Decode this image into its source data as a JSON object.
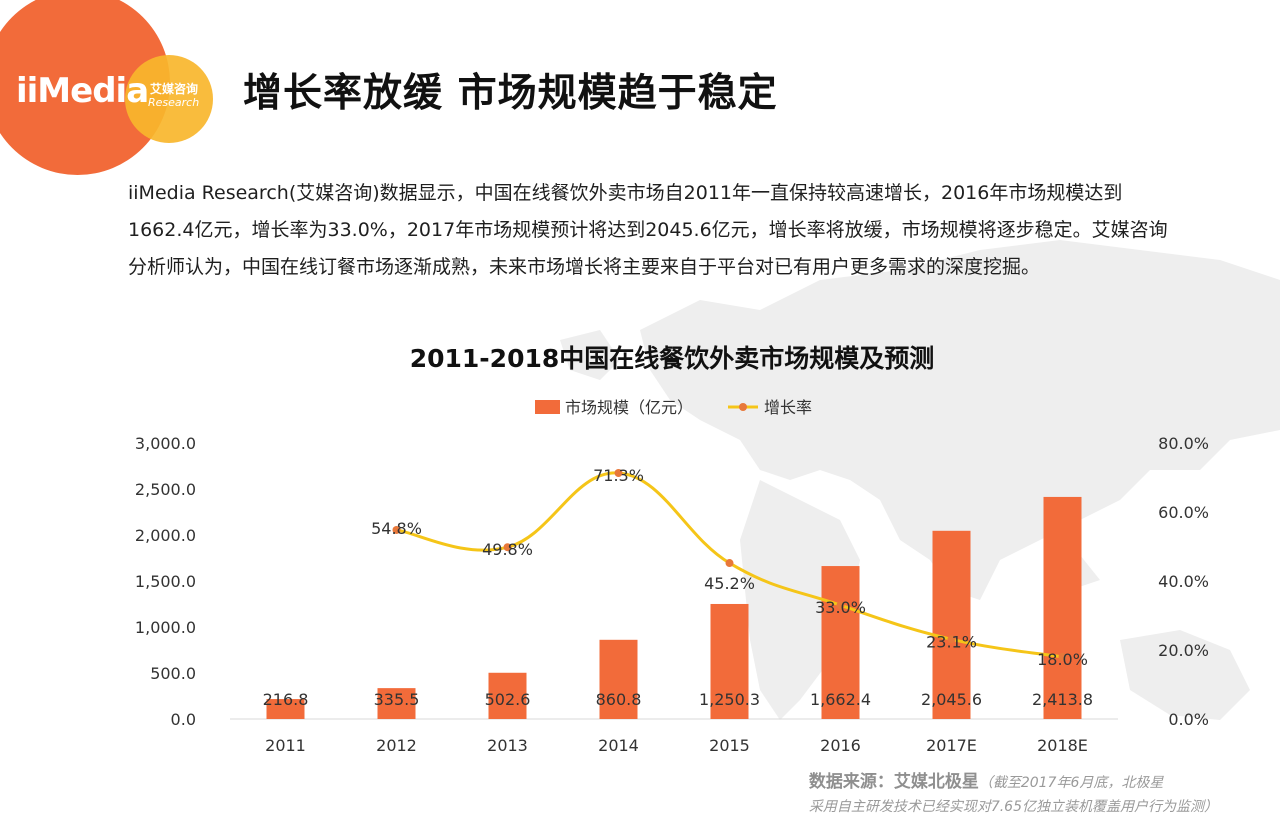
{
  "logo": {
    "brand": "iiMedia",
    "sub_cn": "艾媒咨询",
    "sub_en": "Research"
  },
  "page_title": "增长率放缓 市场规模趋于稳定",
  "description": "iiMedia Research(艾媒咨询)数据显示，中国在线餐饮外卖市场自2011年一直保持较高速增长，2016年市场规模达到1662.4亿元，增长率为33.0%，2017年市场规模预计将达到2045.6亿元，增长率将放缓，市场规模将逐步稳定。艾媒咨询分析师认为，中国在线订餐市场逐渐成熟，未来市场增长将主要来自于平台对已有用户更多需求的深度挖掘。",
  "source": {
    "label": "数据来源：艾媒北极星",
    "note_line1": "（截至2017年6月底，北极星",
    "note_line2": "采用自主研发技术已经实现对7.65亿独立装机覆盖用户行为监测）"
  },
  "colors": {
    "bar": "#f26b3a",
    "line": "#f5c518",
    "marker": "#e8783a",
    "axis": "#d9d9d9"
  },
  "chart_data": {
    "type": "bar",
    "title": "2011-2018中国在线餐饮外卖市场规模及预测",
    "categories": [
      "2011",
      "2012",
      "2013",
      "2014",
      "2015",
      "2016",
      "2017E",
      "2018E"
    ],
    "series": [
      {
        "name": "市场规模（亿元）",
        "type": "bar",
        "axis": "left",
        "values": [
          216.8,
          335.5,
          502.6,
          860.8,
          1250.3,
          1662.4,
          2045.6,
          2413.8
        ],
        "labels": [
          "216.8",
          "335.5",
          "502.6",
          "860.8",
          "1,250.3",
          "1,662.4",
          "2,045.6",
          "2,413.8"
        ]
      },
      {
        "name": "增长率",
        "type": "line",
        "axis": "right",
        "values": [
          null,
          54.8,
          49.8,
          71.3,
          45.2,
          33.0,
          23.1,
          18.0
        ],
        "labels": [
          "",
          "54.8%",
          "49.8%",
          "71.3%",
          "45.2%",
          "33.0%",
          "23.1%",
          "18.0%"
        ]
      }
    ],
    "y_left": {
      "range": [
        0,
        3000
      ],
      "ticks": [
        "0.0",
        "500.0",
        "1,000.0",
        "1,500.0",
        "2,000.0",
        "2,500.0",
        "3,000.0"
      ]
    },
    "y_right": {
      "range": [
        0,
        80
      ],
      "ticks": [
        "0.0%",
        "20.0%",
        "40.0%",
        "60.0%",
        "80.0%"
      ]
    },
    "legend_position": "top",
    "grid": false
  }
}
